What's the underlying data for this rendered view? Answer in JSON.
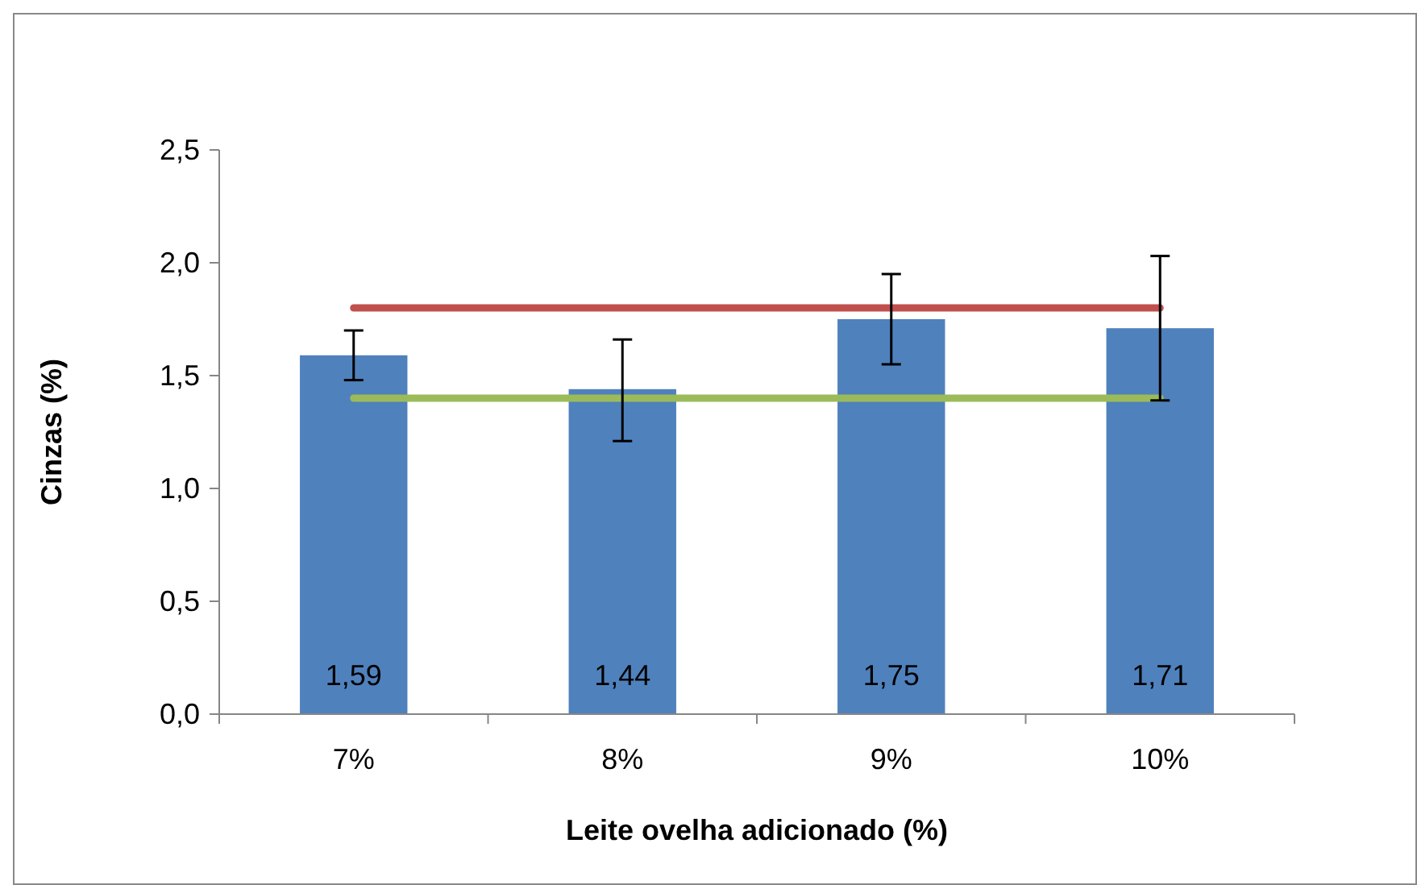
{
  "chart_data": {
    "type": "bar",
    "xlabel": "Leite ovelha adicionado (%)",
    "ylabel": "Cinzas (%)",
    "categories": [
      "7%",
      "8%",
      "9%",
      "10%"
    ],
    "values": [
      1.59,
      1.44,
      1.75,
      1.71
    ],
    "errors": [
      [
        1.48,
        1.7
      ],
      [
        1.21,
        1.66
      ],
      [
        1.55,
        1.95
      ],
      [
        1.39,
        2.03
      ]
    ],
    "color": "#4f81bd",
    "value_labels": [
      "1,59",
      "1,44",
      "1,75",
      "1,71"
    ],
    "ylim": [
      0,
      2.5
    ],
    "yticks": [
      {
        "value": 0,
        "label": "0,0"
      },
      {
        "value": 0.5,
        "label": "0,5"
      },
      {
        "value": 1,
        "label": "1,0"
      },
      {
        "value": 1.5,
        "label": "1,5"
      },
      {
        "value": 2,
        "label": "2,0"
      },
      {
        "value": 2.5,
        "label": "2,5"
      }
    ],
    "ref_lines": [
      {
        "axis": "y",
        "value": 1.8,
        "color": "#c0504d"
      },
      {
        "axis": "y",
        "value": 1.4,
        "color": "#9bbb59"
      }
    ],
    "grid": false
  }
}
